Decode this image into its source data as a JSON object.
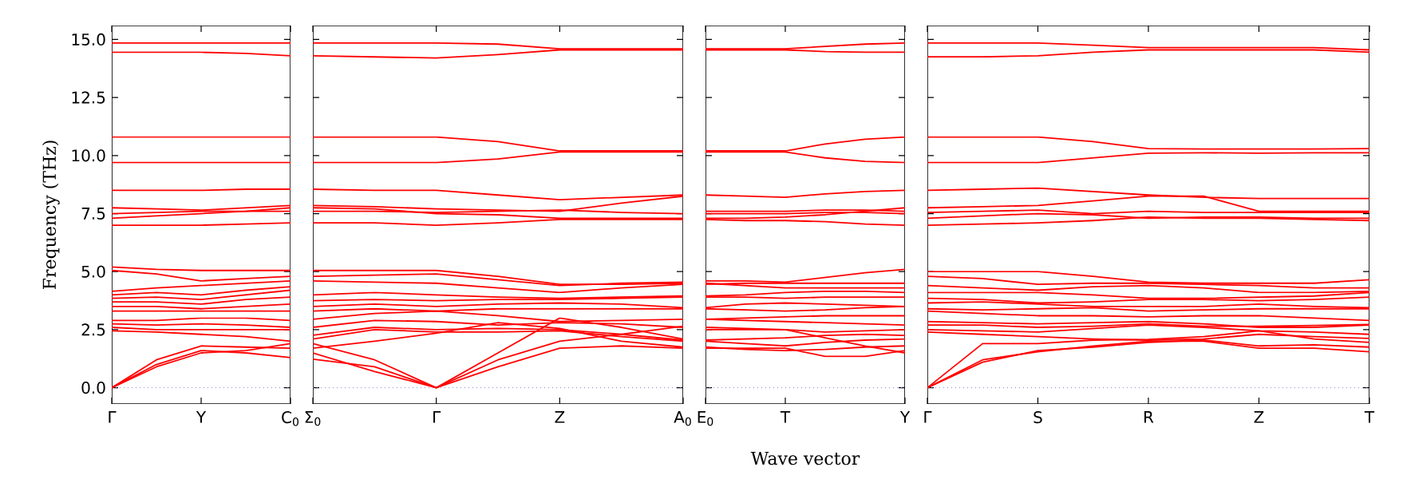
{
  "chart_data": [
    {
      "type": "line",
      "ylabel": "Frequency (THz)",
      "categories": [
        "Γ",
        null,
        "Y",
        null,
        "C$_{0}$"
      ],
      "ylim": [
        -0.7,
        15.6
      ],
      "yticks": [
        {
          "value": 0,
          "label": "0.0"
        },
        {
          "value": 2.5,
          "label": "2.5"
        },
        {
          "value": 5,
          "label": "5.0"
        },
        {
          "value": 7.5,
          "label": "7.5"
        },
        {
          "value": 10,
          "label": "10.0"
        },
        {
          "value": 12.5,
          "label": "12.5"
        },
        {
          "value": 15,
          "label": "15.0"
        }
      ],
      "ref_lines": [
        {
          "axis": "y",
          "value": 0,
          "color": "#8080e0",
          "line_style": "dotted"
        }
      ],
      "series": [
        {
          "color": "#ff0000",
          "values": [
            14.85,
            14.85,
            14.85,
            14.85,
            14.85
          ]
        },
        {
          "color": "#ff0000",
          "values": [
            14.45,
            14.45,
            14.45,
            14.4,
            14.3
          ]
        },
        {
          "color": "#ff0000",
          "values": [
            10.8,
            10.8,
            10.8,
            10.8,
            10.8
          ]
        },
        {
          "color": "#ff0000",
          "values": [
            9.7,
            9.7,
            9.7,
            9.7,
            9.7
          ]
        },
        {
          "color": "#ff0000",
          "values": [
            8.5,
            8.5,
            8.5,
            8.55,
            8.55
          ]
        },
        {
          "color": "#ff0000",
          "values": [
            7.75,
            7.7,
            7.65,
            7.75,
            7.85
          ]
        },
        {
          "color": "#ff0000",
          "values": [
            7.5,
            7.55,
            7.6,
            7.6,
            7.6
          ]
        },
        {
          "color": "#ff0000",
          "values": [
            7.3,
            7.4,
            7.5,
            7.6,
            7.75
          ]
        },
        {
          "color": "#ff0000",
          "values": [
            7.0,
            7.0,
            7.0,
            7.05,
            7.1
          ]
        },
        {
          "color": "#ff0000",
          "values": [
            5.2,
            5.1,
            5.05,
            5.05,
            5.05
          ]
        },
        {
          "color": "#ff0000",
          "values": [
            5.05,
            4.9,
            4.6,
            4.7,
            4.8
          ]
        },
        {
          "color": "#ff0000",
          "values": [
            4.15,
            4.3,
            4.4,
            4.5,
            4.6
          ]
        },
        {
          "color": "#ff0000",
          "values": [
            4.0,
            4.1,
            4.0,
            4.2,
            4.35
          ]
        },
        {
          "color": "#ff0000",
          "values": [
            3.85,
            3.9,
            3.8,
            4.0,
            4.2
          ]
        },
        {
          "color": "#ff0000",
          "values": [
            3.7,
            3.7,
            3.6,
            3.8,
            3.9
          ]
        },
        {
          "color": "#ff0000",
          "values": [
            3.5,
            3.5,
            3.4,
            3.5,
            3.6
          ]
        },
        {
          "color": "#ff0000",
          "values": [
            3.3,
            3.3,
            3.3,
            3.3,
            3.3
          ]
        },
        {
          "color": "#ff0000",
          "values": [
            2.9,
            2.9,
            3.0,
            3.0,
            2.9
          ]
        },
        {
          "color": "#ff0000",
          "values": [
            2.75,
            2.7,
            2.75,
            2.7,
            2.6
          ]
        },
        {
          "color": "#ff0000",
          "values": [
            2.6,
            2.5,
            2.5,
            2.5,
            2.5
          ]
        },
        {
          "color": "#ff0000",
          "values": [
            2.45,
            2.4,
            2.3,
            2.2,
            2.0
          ]
        },
        {
          "color": "#ff0000",
          "values": [
            0,
            1.2,
            1.8,
            1.75,
            1.7
          ]
        },
        {
          "color": "#ff0000",
          "values": [
            0,
            1.0,
            1.6,
            1.5,
            1.3
          ]
        },
        {
          "color": "#ff0000",
          "values": [
            0,
            0.9,
            1.5,
            1.6,
            1.9
          ]
        }
      ]
    },
    {
      "type": "line",
      "categories": [
        "Σ$_{0}$",
        null,
        "Γ",
        null,
        "Z",
        null,
        "A$_{0}$"
      ],
      "ylim": [
        -0.7,
        15.6
      ],
      "tick_labels": "x",
      "yticks": [
        {
          "value": 0,
          "label": null
        },
        {
          "value": 2.5,
          "label": null
        },
        {
          "value": 5,
          "label": null
        },
        {
          "value": 7.5,
          "label": null
        },
        {
          "value": 10,
          "label": null
        },
        {
          "value": 12.5,
          "label": null
        },
        {
          "value": 15,
          "label": null
        }
      ],
      "ref_lines": [
        {
          "axis": "y",
          "value": 0,
          "color": "#8080e0",
          "line_style": "dotted"
        }
      ],
      "series": [
        {
          "color": "#ff0000",
          "values": [
            14.85,
            14.85,
            14.85,
            14.8,
            14.6,
            14.6,
            14.6
          ]
        },
        {
          "color": "#ff0000",
          "values": [
            14.3,
            14.25,
            14.2,
            14.35,
            14.55,
            14.55,
            14.55
          ]
        },
        {
          "color": "#ff0000",
          "values": [
            10.8,
            10.8,
            10.8,
            10.6,
            10.2,
            10.2,
            10.2
          ]
        },
        {
          "color": "#ff0000",
          "values": [
            9.7,
            9.7,
            9.7,
            9.85,
            10.15,
            10.15,
            10.15
          ]
        },
        {
          "color": "#ff0000",
          "values": [
            8.55,
            8.5,
            8.5,
            8.3,
            8.1,
            8.2,
            8.3
          ]
        },
        {
          "color": "#ff0000",
          "values": [
            7.85,
            7.8,
            7.7,
            7.65,
            7.6,
            7.95,
            8.25
          ]
        },
        {
          "color": "#ff0000",
          "values": [
            7.6,
            7.6,
            7.55,
            7.6,
            7.65,
            7.55,
            7.5
          ]
        },
        {
          "color": "#ff0000",
          "values": [
            7.75,
            7.7,
            7.5,
            7.45,
            7.3,
            7.3,
            7.3
          ]
        },
        {
          "color": "#ff0000",
          "values": [
            7.1,
            7.1,
            7.0,
            7.1,
            7.25,
            7.25,
            7.25
          ]
        },
        {
          "color": "#ff0000",
          "values": [
            5.05,
            5.05,
            5.05,
            4.8,
            4.45,
            4.45,
            4.5
          ]
        },
        {
          "color": "#ff0000",
          "values": [
            4.8,
            4.85,
            4.9,
            4.65,
            4.4,
            4.5,
            4.55
          ]
        },
        {
          "color": "#ff0000",
          "values": [
            4.6,
            4.55,
            4.5,
            4.3,
            4.1,
            4.3,
            4.45
          ]
        },
        {
          "color": "#ff0000",
          "values": [
            4.0,
            4.1,
            4.0,
            3.9,
            3.85,
            3.9,
            3.95
          ]
        },
        {
          "color": "#ff0000",
          "values": [
            3.75,
            3.8,
            3.75,
            3.8,
            3.8,
            3.85,
            3.9
          ]
        },
        {
          "color": "#ff0000",
          "values": [
            3.5,
            3.6,
            3.5,
            3.6,
            3.65,
            3.6,
            3.45
          ]
        },
        {
          "color": "#ff0000",
          "values": [
            3.3,
            3.4,
            3.3,
            3.4,
            3.4,
            3.4,
            3.4
          ]
        },
        {
          "color": "#ff0000",
          "values": [
            2.95,
            3.2,
            3.3,
            3.1,
            2.85,
            2.9,
            2.95
          ]
        },
        {
          "color": "#ff0000",
          "values": [
            2.6,
            2.9,
            2.85,
            2.7,
            2.8,
            2.75,
            2.6
          ]
        },
        {
          "color": "#ff0000",
          "values": [
            2.26,
            2.6,
            2.5,
            2.55,
            2.5,
            2.3,
            2.05
          ]
        },
        {
          "color": "#ff0000",
          "values": [
            2.1,
            2.5,
            2.4,
            2.4,
            2.45,
            2.2,
            2.0
          ]
        },
        {
          "color": "#ff0000",
          "values": [
            1.7,
            2.0,
            2.35,
            2.8,
            2.55,
            2.0,
            1.75
          ]
        },
        {
          "color": "#ff0000",
          "values": [
            1.23,
            0.9,
            0,
            1.5,
            3.0,
            2.6,
            2.1
          ]
        },
        {
          "color": "#ff0000",
          "values": [
            1.5,
            0.7,
            0,
            1.2,
            2.0,
            2.3,
            2.65
          ]
        },
        {
          "color": "#ff0000",
          "values": [
            1.9,
            1.2,
            0,
            0.9,
            1.7,
            1.8,
            1.7
          ]
        }
      ]
    },
    {
      "type": "line",
      "xlabel": "Wave vector",
      "categories": [
        "E$_{0}$",
        null,
        "T",
        null,
        null,
        "Y"
      ],
      "ylim": [
        -0.7,
        15.6
      ],
      "tick_labels": "x",
      "yticks": [
        {
          "value": 0,
          "label": null
        },
        {
          "value": 2.5,
          "label": null
        },
        {
          "value": 5,
          "label": null
        },
        {
          "value": 7.5,
          "label": null
        },
        {
          "value": 10,
          "label": null
        },
        {
          "value": 12.5,
          "label": null
        },
        {
          "value": 15,
          "label": null
        }
      ],
      "ref_lines": [
        {
          "axis": "y",
          "value": 0,
          "color": "#8080e0",
          "line_style": "dotted"
        }
      ],
      "series": [
        {
          "color": "#ff0000",
          "values": [
            14.6,
            14.6,
            14.6,
            14.7,
            14.8,
            14.85
          ]
        },
        {
          "color": "#ff0000",
          "values": [
            14.55,
            14.55,
            14.55,
            14.48,
            14.45,
            14.45
          ]
        },
        {
          "color": "#ff0000",
          "values": [
            10.2,
            10.2,
            10.2,
            10.5,
            10.7,
            10.8
          ]
        },
        {
          "color": "#ff0000",
          "values": [
            10.15,
            10.15,
            10.15,
            9.9,
            9.75,
            9.7
          ]
        },
        {
          "color": "#ff0000",
          "values": [
            8.3,
            8.25,
            8.2,
            8.35,
            8.45,
            8.5
          ]
        },
        {
          "color": "#ff0000",
          "values": [
            7.6,
            7.6,
            7.6,
            7.65,
            7.65,
            7.6
          ]
        },
        {
          "color": "#ff0000",
          "values": [
            7.5,
            7.5,
            7.5,
            7.55,
            7.55,
            7.5
          ]
        },
        {
          "color": "#ff0000",
          "values": [
            7.3,
            7.3,
            7.35,
            7.45,
            7.6,
            7.75
          ]
        },
        {
          "color": "#ff0000",
          "values": [
            7.25,
            7.2,
            7.2,
            7.15,
            7.05,
            7.0
          ]
        },
        {
          "color": "#ff0000",
          "values": [
            4.6,
            4.6,
            4.55,
            4.75,
            4.95,
            5.1
          ]
        },
        {
          "color": "#ff0000",
          "values": [
            4.45,
            4.5,
            4.5,
            4.5,
            4.5,
            4.5
          ]
        },
        {
          "color": "#ff0000",
          "values": [
            4.5,
            4.4,
            4.3,
            4.3,
            4.3,
            4.3
          ]
        },
        {
          "color": "#ff0000",
          "values": [
            3.95,
            4.0,
            4.1,
            4.15,
            4.15,
            4.1
          ]
        },
        {
          "color": "#ff0000",
          "values": [
            3.9,
            3.9,
            3.85,
            3.9,
            3.9,
            3.9
          ]
        },
        {
          "color": "#ff0000",
          "values": [
            3.45,
            3.6,
            3.65,
            3.6,
            3.55,
            3.5
          ]
        },
        {
          "color": "#ff0000",
          "values": [
            3.4,
            3.35,
            3.3,
            3.35,
            3.45,
            3.5
          ]
        },
        {
          "color": "#ff0000",
          "values": [
            2.95,
            3.0,
            3.05,
            3.1,
            3.1,
            3.1
          ]
        },
        {
          "color": "#ff0000",
          "values": [
            2.95,
            2.9,
            2.85,
            2.8,
            2.75,
            2.7
          ]
        },
        {
          "color": "#ff0000",
          "values": [
            2.5,
            2.5,
            2.5,
            2.4,
            2.45,
            2.5
          ]
        },
        {
          "color": "#ff0000",
          "values": [
            2.05,
            2.1,
            2.15,
            2.25,
            2.3,
            2.25
          ]
        },
        {
          "color": "#ff0000",
          "values": [
            2.0,
            1.9,
            1.8,
            1.95,
            2.05,
            2.1
          ]
        },
        {
          "color": "#ff0000",
          "values": [
            1.7,
            1.7,
            1.7,
            1.35,
            1.35,
            1.6
          ]
        },
        {
          "color": "#ff0000",
          "values": [
            1.75,
            1.65,
            1.6,
            1.65,
            1.75,
            1.8
          ]
        },
        {
          "color": "#ff0000",
          "values": [
            2.6,
            2.55,
            2.5,
            2.15,
            1.8,
            1.5
          ]
        }
      ]
    },
    {
      "type": "line",
      "categories": [
        "Γ",
        null,
        "S",
        null,
        "R",
        null,
        "Z",
        null,
        "T"
      ],
      "ylim": [
        -0.7,
        15.6
      ],
      "tick_labels": "x",
      "yticks": [
        {
          "value": 0,
          "label": null
        },
        {
          "value": 2.5,
          "label": null
        },
        {
          "value": 5,
          "label": null
        },
        {
          "value": 7.5,
          "label": null
        },
        {
          "value": 10,
          "label": null
        },
        {
          "value": 12.5,
          "label": null
        },
        {
          "value": 15,
          "label": null
        }
      ],
      "ref_lines": [
        {
          "axis": "y",
          "value": 0,
          "color": "#8080e0",
          "line_style": "dotted"
        }
      ],
      "series": [
        {
          "color": "#ff0000",
          "values": [
            14.85,
            14.85,
            14.85,
            14.75,
            14.65,
            14.65,
            14.65,
            14.65,
            14.55
          ]
        },
        {
          "color": "#ff0000",
          "values": [
            14.25,
            14.25,
            14.3,
            14.45,
            14.55,
            14.55,
            14.55,
            14.55,
            14.45
          ]
        },
        {
          "color": "#ff0000",
          "values": [
            10.8,
            10.8,
            10.8,
            10.6,
            10.3,
            10.28,
            10.28,
            10.28,
            10.3
          ]
        },
        {
          "color": "#ff0000",
          "values": [
            9.7,
            9.7,
            9.7,
            9.9,
            10.1,
            10.12,
            10.1,
            10.12,
            10.12
          ]
        },
        {
          "color": "#ff0000",
          "values": [
            8.5,
            8.55,
            8.6,
            8.45,
            8.3,
            8.2,
            8.15,
            8.15,
            8.15
          ]
        },
        {
          "color": "#ff0000",
          "values": [
            7.75,
            7.8,
            7.85,
            8.05,
            8.25,
            8.25,
            7.6,
            7.6,
            7.6
          ]
        },
        {
          "color": "#ff0000",
          "values": [
            7.55,
            7.6,
            7.65,
            7.5,
            7.6,
            7.55,
            7.55,
            7.55,
            7.55
          ]
        },
        {
          "color": "#ff0000",
          "values": [
            7.3,
            7.4,
            7.5,
            7.45,
            7.3,
            7.35,
            7.35,
            7.3,
            7.3
          ]
        },
        {
          "color": "#ff0000",
          "values": [
            7.0,
            7.05,
            7.1,
            7.2,
            7.35,
            7.3,
            7.3,
            7.25,
            7.2
          ]
        },
        {
          "color": "#ff0000",
          "values": [
            5.0,
            5.0,
            5.0,
            4.8,
            4.55,
            4.5,
            4.5,
            4.5,
            4.65
          ]
        },
        {
          "color": "#ff0000",
          "values": [
            4.8,
            4.7,
            4.45,
            4.5,
            4.5,
            4.45,
            4.4,
            4.3,
            4.3
          ]
        },
        {
          "color": "#ff0000",
          "values": [
            4.4,
            4.3,
            4.2,
            4.35,
            4.4,
            4.3,
            4.1,
            4.1,
            4.15
          ]
        },
        {
          "color": "#ff0000",
          "values": [
            4.1,
            4.1,
            4.1,
            4.0,
            3.85,
            3.85,
            3.9,
            3.95,
            4.1
          ]
        },
        {
          "color": "#ff0000",
          "values": [
            3.85,
            3.8,
            3.65,
            3.7,
            3.8,
            3.8,
            3.75,
            3.8,
            3.9
          ]
        },
        {
          "color": "#ff0000",
          "values": [
            3.65,
            3.7,
            3.6,
            3.5,
            3.5,
            3.5,
            3.6,
            3.5,
            3.45
          ]
        },
        {
          "color": "#ff0000",
          "values": [
            3.4,
            3.35,
            3.4,
            3.45,
            3.3,
            3.35,
            3.4,
            3.4,
            3.4
          ]
        },
        {
          "color": "#ff0000",
          "values": [
            3.3,
            3.2,
            3.1,
            3.1,
            3.05,
            3.1,
            3.1,
            3.0,
            2.9
          ]
        },
        {
          "color": "#ff0000",
          "values": [
            2.85,
            2.8,
            2.75,
            2.8,
            2.85,
            2.75,
            2.6,
            2.6,
            2.7
          ]
        },
        {
          "color": "#ff0000",
          "values": [
            2.7,
            2.7,
            2.6,
            2.65,
            2.75,
            2.65,
            2.65,
            2.68,
            2.72
          ]
        },
        {
          "color": "#ff0000",
          "values": [
            2.5,
            2.45,
            2.4,
            2.55,
            2.7,
            2.6,
            2.45,
            2.4,
            2.3
          ]
        },
        {
          "color": "#ff0000",
          "values": [
            2.4,
            2.3,
            2.2,
            2.1,
            2.05,
            2.1,
            2.3,
            2.2,
            2.12
          ]
        },
        {
          "color": "#ff0000",
          "values": [
            0,
            1.9,
            1.9,
            2.05,
            2.08,
            2.2,
            2.45,
            2.1,
            1.95
          ]
        },
        {
          "color": "#ff0000",
          "values": [
            0,
            1.2,
            1.55,
            1.8,
            2.0,
            2.0,
            1.7,
            1.7,
            1.55
          ]
        },
        {
          "color": "#ff0000",
          "values": [
            0,
            1.1,
            1.6,
            1.75,
            1.95,
            2.05,
            1.8,
            1.85,
            1.75
          ]
        }
      ]
    }
  ]
}
